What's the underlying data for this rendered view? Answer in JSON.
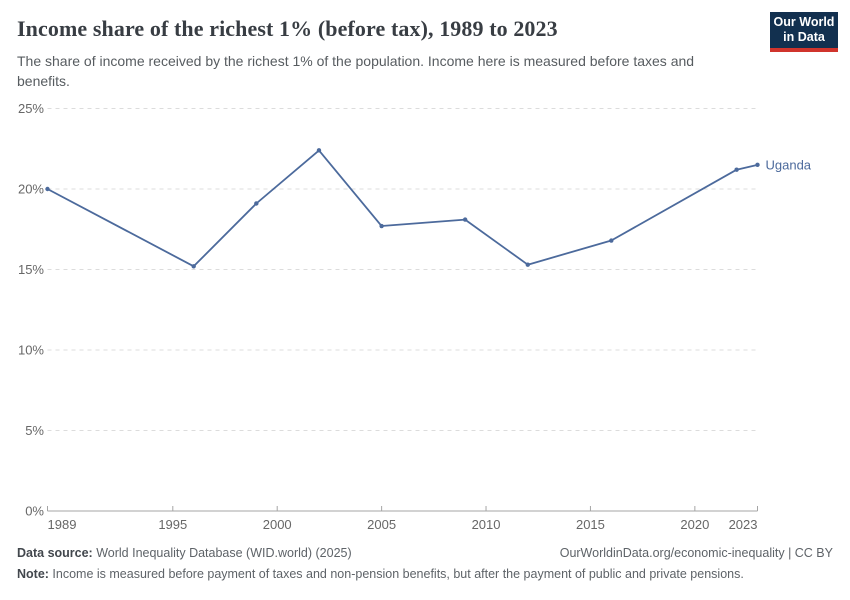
{
  "header": {
    "title": "Income share of the richest 1% (before tax), 1989 to 2023",
    "subtitle": "The share of income received by the richest 1% of the population. Income here is measured before taxes and benefits.",
    "logo": {
      "line1": "Our World",
      "line2": "in Data"
    },
    "logo_colors": {
      "background": "#12304f",
      "accent": "#d0342c",
      "text": "#ffffff"
    }
  },
  "chart_data": {
    "type": "line",
    "title": "Income share of the richest 1% (before tax), 1989 to 2023",
    "xlabel": "",
    "ylabel": "",
    "xlim": [
      1989,
      2023
    ],
    "ylim": [
      0,
      25
    ],
    "x_ticks": [
      1989,
      1995,
      2000,
      2005,
      2010,
      2015,
      2020,
      2023
    ],
    "y_ticks": [
      0,
      5,
      10,
      15,
      20,
      25
    ],
    "y_suffix": "%",
    "grid": "horizontal-dashed",
    "legend_position": "end-of-line",
    "series": [
      {
        "name": "Uganda",
        "color": "#4C6A9C",
        "points": [
          {
            "year": 1989,
            "value": 20.0
          },
          {
            "year": 1996,
            "value": 15.2
          },
          {
            "year": 1999,
            "value": 19.1
          },
          {
            "year": 2002,
            "value": 22.4
          },
          {
            "year": 2005,
            "value": 17.7
          },
          {
            "year": 2009,
            "value": 18.1
          },
          {
            "year": 2012,
            "value": 15.3
          },
          {
            "year": 2016,
            "value": 16.8
          },
          {
            "year": 2022,
            "value": 21.2
          },
          {
            "year": 2023,
            "value": 21.5
          }
        ]
      }
    ],
    "style": {
      "grid_color": "#dcdcdc",
      "axis_color": "#a5a5a5",
      "tick_label_color": "#676767"
    }
  },
  "footer": {
    "source_label": "Data source:",
    "source_text": " World Inequality Database (WID.world) (2025)",
    "license_text": "OurWorldinData.org/economic-inequality | CC BY",
    "note_label": "Note:",
    "note_text": " Income is measured before payment of taxes and non-pension benefits, but after the payment of public and private pensions."
  }
}
